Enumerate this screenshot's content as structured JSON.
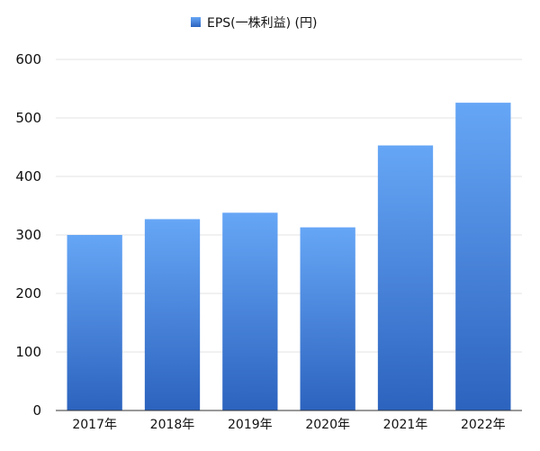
{
  "chart_data": {
    "type": "bar",
    "title": "",
    "xlabel": "",
    "ylabel": "",
    "categories": [
      "2017年",
      "2018年",
      "2019年",
      "2020年",
      "2021年",
      "2022年"
    ],
    "series": [
      {
        "name": "EPS(一株利益) (円)",
        "values": [
          300,
          327,
          338,
          313,
          453,
          526
        ]
      }
    ],
    "ylim": [
      0,
      600
    ],
    "yticks": [
      "0",
      "100",
      "200",
      "300",
      "400",
      "500",
      "600"
    ],
    "grid": true,
    "legend_position": "top-center",
    "colors": {
      "bar_top": "#66a6f6",
      "bar_bottom": "#2c63be",
      "grid": "#e3e3e3",
      "axis": "#333333"
    }
  }
}
